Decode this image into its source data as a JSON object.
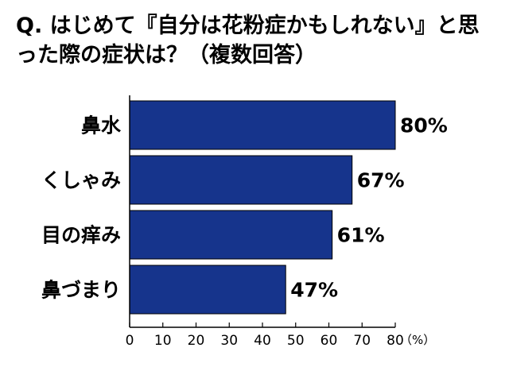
{
  "title": "Q. はじめて『自分は花粉症かもしれない』と思った際の症状は？（複数回答）",
  "chart_data": {
    "type": "bar",
    "orientation": "horizontal",
    "title": "Q. はじめて『自分は花粉症かもしれない』と思った際の症状は？（複数回答）",
    "categories": [
      "鼻水",
      "くしゃみ",
      "目の痒み",
      "鼻づまり"
    ],
    "values": [
      80,
      67,
      61,
      47
    ],
    "value_labels": [
      "80%",
      "67%",
      "61%",
      "47%"
    ],
    "xticks": [
      0,
      10,
      20,
      30,
      40,
      50,
      60,
      70,
      80
    ],
    "xlim": [
      0,
      80
    ],
    "unit": "（%）",
    "bar_color": "#16348c",
    "bar_edge_color": "#000000",
    "grid": false,
    "legend": "none"
  }
}
